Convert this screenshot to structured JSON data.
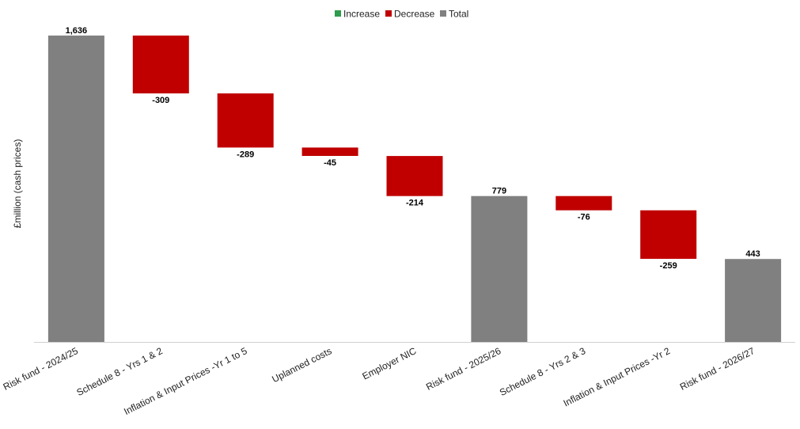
{
  "chart_data": {
    "type": "bar",
    "subtype": "waterfall",
    "categories": [
      "Risk fund - 2024/25",
      "Schedule 8 - Yrs 1 & 2",
      "Inflation & Input Prices -Yr 1 to 5",
      "Uplanned costs",
      "Employer NIC",
      "Risk fund - 2025/26",
      "Schedule 8 - Yrs 2 & 3",
      "Inflation & Input Prices -Yr 2",
      "Risk fund - 2026/27"
    ],
    "values": [
      1636,
      -309,
      -289,
      -45,
      -214,
      779,
      -76,
      -259,
      443
    ],
    "value_labels": [
      "1,636",
      "-309",
      "-289",
      "-45",
      "-214",
      "779",
      "-76",
      "-259",
      "443"
    ],
    "kinds": [
      "total",
      "decrease",
      "decrease",
      "decrease",
      "decrease",
      "total",
      "decrease",
      "decrease",
      "total"
    ],
    "title": "",
    "xlabel": "",
    "ylabel": "£million (cash prices)",
    "ylim": [
      0,
      1700
    ],
    "grid": false,
    "legend": {
      "position": "top-center",
      "entries": [
        {
          "label": "Increase",
          "kind": "increase",
          "color": "#2e9b4e"
        },
        {
          "label": "Decrease",
          "kind": "decrease",
          "color": "#c00000"
        },
        {
          "label": "Total",
          "kind": "total",
          "color": "#808080"
        }
      ]
    },
    "colors": {
      "increase": "#2e9b4e",
      "decrease": "#c00000",
      "total": "#808080",
      "axis": "#d0d0d0"
    }
  }
}
